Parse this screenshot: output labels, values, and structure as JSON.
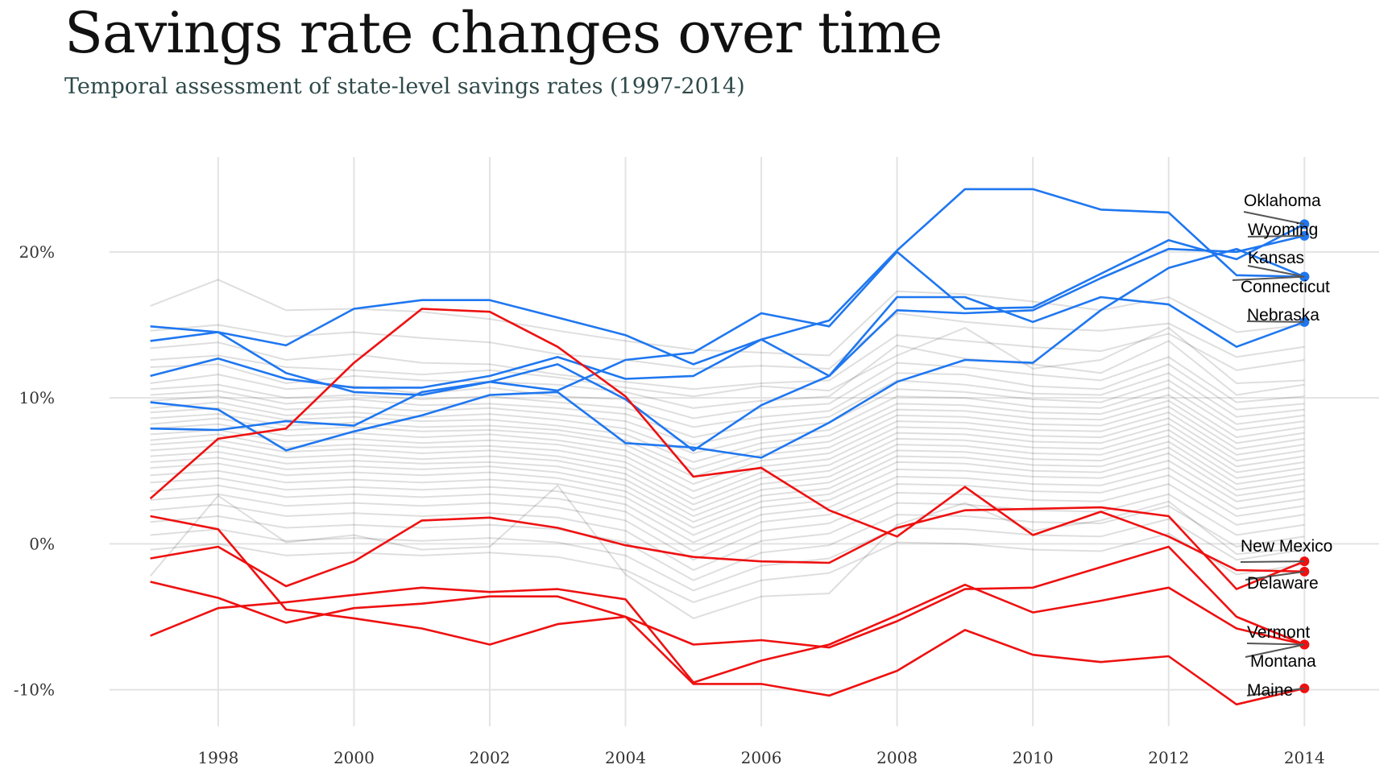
{
  "title": "Savings rate changes over time",
  "subtitle": "Temporal assessment of state-level savings rates (1997-2014)",
  "chart_data": {
    "type": "line",
    "title": "Savings rate changes over time",
    "subtitle": "Temporal assessment of state-level savings rates (1997-2014)",
    "xlabel": "",
    "ylabel": "",
    "x": [
      1997,
      1998,
      1999,
      2000,
      2001,
      2002,
      2003,
      2004,
      2005,
      2006,
      2007,
      2008,
      2009,
      2010,
      2011,
      2012,
      2013,
      2014
    ],
    "xlim": [
      1996.4,
      2015.1
    ],
    "ylim": [
      -12.5,
      26.5
    ],
    "x_ticks": [
      1998,
      2000,
      2002,
      2004,
      2006,
      2008,
      2010,
      2012,
      2014
    ],
    "x_tick_labels": [
      "1998",
      "2000",
      "2002",
      "2004",
      "2006",
      "2008",
      "2010",
      "2012",
      "2014"
    ],
    "y_ticks": [
      -10,
      0,
      10,
      20
    ],
    "y_tick_labels": [
      "-10%",
      "0%",
      "10%",
      "20%"
    ],
    "grid": true,
    "legend": "none",
    "colors": {
      "high": "#1f77f0",
      "low": "#ee1111",
      "other": "#b8b8b8"
    },
    "series": [
      {
        "name": "Oklahoma",
        "group": "high",
        "values": [
          7.9,
          7.8,
          8.4,
          8.1,
          10.4,
          11.1,
          10.5,
          12.6,
          13.1,
          15.8,
          14.9,
          20.0,
          16.1,
          16.2,
          18.5,
          20.8,
          19.5,
          21.9
        ]
      },
      {
        "name": "Wyoming",
        "group": "high",
        "values": [
          13.9,
          14.5,
          11.7,
          10.4,
          10.2,
          11.1,
          12.3,
          9.9,
          6.4,
          9.5,
          11.5,
          16.0,
          15.8,
          16.0,
          18.2,
          20.2,
          20.0,
          21.1
        ]
      },
      {
        "name": "Kansas",
        "group": "high",
        "values": [
          9.7,
          9.2,
          6.4,
          7.7,
          8.8,
          10.2,
          10.4,
          6.9,
          6.6,
          5.9,
          8.3,
          11.1,
          12.6,
          12.4,
          16.0,
          18.9,
          20.2,
          18.3
        ]
      },
      {
        "name": "Connecticut",
        "group": "high",
        "values": [
          14.9,
          14.5,
          13.6,
          16.1,
          16.7,
          16.7,
          15.5,
          14.3,
          12.3,
          14.0,
          15.3,
          20.1,
          24.3,
          24.3,
          22.9,
          22.7,
          18.4,
          18.3
        ]
      },
      {
        "name": "Nebraska",
        "group": "high",
        "values": [
          11.5,
          12.7,
          11.3,
          10.7,
          10.7,
          11.5,
          12.8,
          11.3,
          11.5,
          14.0,
          11.5,
          16.9,
          16.9,
          15.2,
          16.9,
          16.4,
          13.5,
          15.2
        ]
      },
      {
        "name": "New Mexico",
        "group": "low",
        "values": [
          -1.0,
          -0.2,
          -2.9,
          -1.2,
          1.6,
          1.8,
          1.1,
          -0.1,
          -0.9,
          -1.2,
          -1.3,
          1.1,
          2.3,
          2.4,
          2.5,
          1.9,
          -3.1,
          -1.2
        ]
      },
      {
        "name": "Delaware",
        "group": "low",
        "values": [
          3.1,
          7.2,
          7.9,
          12.4,
          16.1,
          15.9,
          13.5,
          10.1,
          4.6,
          5.2,
          2.3,
          0.5,
          3.9,
          0.6,
          2.2,
          0.5,
          -1.8,
          -1.9
        ]
      },
      {
        "name": "Vermont",
        "group": "low",
        "values": [
          -6.3,
          -4.4,
          -4.0,
          -3.5,
          -3.0,
          -3.3,
          -3.1,
          -3.8,
          -9.5,
          -8.0,
          -6.9,
          -4.9,
          -2.8,
          -4.7,
          -3.9,
          -3.0,
          -5.8,
          -6.9
        ]
      },
      {
        "name": "Montana",
        "group": "low",
        "values": [
          1.9,
          1.0,
          -4.5,
          -5.1,
          -5.8,
          -6.9,
          -5.5,
          -5.0,
          -6.9,
          -6.6,
          -7.1,
          -5.3,
          -3.1,
          -3.0,
          -1.6,
          -0.2,
          -5.0,
          -6.9
        ]
      },
      {
        "name": "Maine",
        "group": "low",
        "values": [
          -2.6,
          -3.7,
          -5.4,
          -4.4,
          -4.1,
          -3.6,
          -3.6,
          -5.0,
          -9.6,
          -9.6,
          -10.4,
          -8.7,
          -5.9,
          -7.6,
          -8.1,
          -7.7,
          -11.0,
          -9.9
        ]
      },
      {
        "group": "other",
        "values": [
          16.3,
          18.1,
          16.0,
          16.1,
          15.9,
          15.4,
          14.6,
          13.9,
          13.3,
          13.1,
          12.9,
          17.3,
          17.1,
          16.6,
          16.0,
          16.9,
          14.5,
          15.0
        ]
      },
      {
        "group": "other",
        "values": [
          14.6,
          15.0,
          14.2,
          14.5,
          14.1,
          13.8,
          13.0,
          12.6,
          12.0,
          12.2,
          12.0,
          15.8,
          15.2,
          14.8,
          14.6,
          15.1,
          12.8,
          13.5
        ]
      },
      {
        "group": "other",
        "values": [
          13.4,
          13.8,
          12.6,
          13.0,
          12.4,
          12.3,
          11.6,
          11.1,
          10.6,
          11.0,
          11.2,
          14.3,
          13.9,
          13.5,
          13.2,
          14.4,
          11.9,
          12.6
        ]
      },
      {
        "group": "other",
        "values": [
          12.6,
          12.9,
          12.1,
          11.9,
          11.6,
          11.9,
          11.4,
          10.7,
          10.1,
          10.8,
          10.5,
          12.9,
          14.8,
          12.0,
          12.6,
          14.8,
          11.0,
          11.2
        ]
      },
      {
        "group": "other",
        "values": [
          12.1,
          12.3,
          11.0,
          11.5,
          11.2,
          11.1,
          10.9,
          10.4,
          9.3,
          9.8,
          10.1,
          13.6,
          12.7,
          12.3,
          11.7,
          13.9,
          10.2,
          10.9
        ]
      },
      {
        "group": "other",
        "values": [
          11.0,
          11.6,
          10.6,
          10.8,
          10.3,
          10.7,
          10.1,
          9.9,
          8.6,
          9.3,
          9.6,
          12.4,
          12.1,
          11.6,
          11.2,
          12.8,
          9.7,
          10.1
        ]
      },
      {
        "group": "other",
        "values": [
          10.6,
          10.9,
          10.0,
          10.2,
          9.9,
          10.1,
          9.7,
          9.3,
          8.0,
          8.7,
          9.1,
          11.7,
          11.6,
          10.8,
          10.6,
          12.3,
          9.2,
          9.6
        ]
      },
      {
        "group": "other",
        "values": [
          10.2,
          10.5,
          9.6,
          9.9,
          9.5,
          9.6,
          9.3,
          8.9,
          7.3,
          8.2,
          8.7,
          11.2,
          10.9,
          10.3,
          10.2,
          11.7,
          8.7,
          9.2
        ]
      },
      {
        "group": "other",
        "values": [
          9.8,
          10.1,
          9.2,
          9.4,
          9.1,
          9.3,
          8.9,
          8.4,
          6.8,
          7.8,
          8.3,
          10.6,
          10.4,
          9.9,
          9.7,
          11.2,
          8.2,
          8.8
        ]
      },
      {
        "group": "other",
        "values": [
          9.3,
          9.7,
          8.8,
          9.0,
          8.7,
          8.9,
          8.5,
          7.9,
          6.2,
          7.3,
          7.8,
          10.1,
          10.0,
          9.4,
          9.3,
          10.7,
          7.8,
          8.4
        ]
      },
      {
        "group": "other",
        "values": [
          9.0,
          9.3,
          8.5,
          8.7,
          8.4,
          8.5,
          8.1,
          7.5,
          5.6,
          6.9,
          7.4,
          9.6,
          9.5,
          9.0,
          8.9,
          10.2,
          7.3,
          8.0
        ]
      },
      {
        "group": "other",
        "values": [
          8.6,
          8.9,
          8.1,
          8.3,
          8.0,
          8.1,
          7.8,
          7.1,
          5.1,
          6.5,
          7.0,
          9.2,
          9.1,
          8.6,
          8.5,
          9.8,
          6.9,
          7.6
        ]
      },
      {
        "group": "other",
        "values": [
          8.2,
          8.6,
          7.8,
          8.0,
          7.7,
          7.8,
          7.5,
          6.8,
          4.6,
          6.1,
          6.6,
          8.8,
          8.7,
          8.2,
          8.1,
          9.4,
          6.5,
          7.2
        ]
      },
      {
        "group": "other",
        "values": [
          7.9,
          8.2,
          7.4,
          7.6,
          7.3,
          7.5,
          7.1,
          6.4,
          4.1,
          5.7,
          6.2,
          8.4,
          8.3,
          7.8,
          7.7,
          9.0,
          6.1,
          6.8
        ]
      },
      {
        "group": "other",
        "values": [
          7.5,
          7.8,
          7.0,
          7.2,
          6.9,
          7.1,
          6.8,
          6.0,
          3.6,
          5.3,
          5.8,
          8.0,
          7.9,
          7.4,
          7.3,
          8.6,
          5.7,
          6.4
        ]
      },
      {
        "group": "other",
        "values": [
          7.1,
          7.5,
          6.6,
          6.8,
          6.6,
          6.7,
          6.4,
          5.6,
          3.1,
          4.9,
          5.4,
          7.6,
          7.5,
          7.0,
          6.9,
          8.2,
          5.3,
          6.0
        ]
      },
      {
        "group": "other",
        "values": [
          6.8,
          7.1,
          6.3,
          6.5,
          6.2,
          6.4,
          6.0,
          5.2,
          2.7,
          4.5,
          5.0,
          7.2,
          7.1,
          6.6,
          6.5,
          7.8,
          4.9,
          5.6
        ]
      },
      {
        "group": "other",
        "values": [
          6.4,
          6.7,
          5.9,
          6.1,
          5.8,
          6.0,
          5.7,
          4.8,
          2.3,
          4.1,
          4.6,
          6.8,
          6.7,
          6.2,
          6.1,
          7.4,
          4.5,
          5.2
        ]
      },
      {
        "group": "other",
        "values": [
          6.0,
          6.3,
          5.5,
          5.7,
          5.5,
          5.6,
          5.3,
          4.4,
          1.9,
          3.7,
          4.2,
          6.4,
          6.3,
          5.8,
          5.7,
          7.0,
          4.1,
          4.8
        ]
      },
      {
        "group": "other",
        "values": [
          5.6,
          5.9,
          5.1,
          5.3,
          5.1,
          5.3,
          4.9,
          4.0,
          1.5,
          3.3,
          3.8,
          6.0,
          5.9,
          5.4,
          5.3,
          6.6,
          3.7,
          4.4
        ]
      },
      {
        "group": "other",
        "values": [
          5.2,
          5.5,
          4.7,
          4.9,
          4.7,
          4.9,
          4.5,
          3.6,
          1.1,
          2.9,
          3.4,
          5.6,
          5.5,
          5.0,
          4.9,
          6.2,
          3.3,
          4.0
        ]
      },
      {
        "group": "other",
        "values": [
          4.7,
          5.0,
          4.2,
          4.4,
          4.2,
          4.4,
          4.1,
          3.2,
          0.6,
          2.5,
          3.0,
          5.1,
          5.0,
          4.6,
          4.5,
          5.7,
          2.9,
          3.6
        ]
      },
      {
        "group": "other",
        "values": [
          4.2,
          4.5,
          3.7,
          3.9,
          3.7,
          3.9,
          3.6,
          2.7,
          0.1,
          2.0,
          2.5,
          4.6,
          4.5,
          4.1,
          4.0,
          5.2,
          2.4,
          3.1
        ]
      },
      {
        "group": "other",
        "values": [
          3.6,
          4.0,
          3.2,
          3.4,
          3.2,
          3.4,
          3.1,
          2.2,
          -0.5,
          1.5,
          2.0,
          4.1,
          4.0,
          3.6,
          3.5,
          4.7,
          1.9,
          2.6
        ]
      },
      {
        "group": "other",
        "values": [
          3.0,
          3.4,
          2.6,
          2.8,
          2.6,
          2.8,
          2.5,
          1.6,
          -1.1,
          0.9,
          1.4,
          3.5,
          3.4,
          3.0,
          2.9,
          4.1,
          1.3,
          2.0
        ]
      },
      {
        "group": "other",
        "values": [
          2.3,
          2.7,
          1.9,
          2.1,
          1.9,
          2.1,
          1.8,
          0.9,
          -1.8,
          0.2,
          0.7,
          2.8,
          2.7,
          2.3,
          2.2,
          3.4,
          0.6,
          1.3
        ]
      },
      {
        "group": "other",
        "values": [
          1.5,
          1.9,
          1.1,
          1.3,
          1.1,
          1.3,
          1.0,
          0.1,
          -2.5,
          -0.6,
          -0.1,
          2.0,
          1.9,
          1.5,
          1.4,
          2.6,
          -0.2,
          0.5
        ]
      },
      {
        "group": "other",
        "values": [
          0.6,
          1.0,
          0.2,
          0.4,
          0.2,
          0.4,
          0.1,
          -0.8,
          -3.2,
          -1.5,
          -1.0,
          1.1,
          1.0,
          0.6,
          0.5,
          1.7,
          -1.1,
          -0.4
        ]
      },
      {
        "group": "other",
        "values": [
          -0.4,
          0.0,
          -0.8,
          -0.6,
          -0.8,
          -0.6,
          -0.9,
          -1.8,
          -4.0,
          -2.5,
          -2.0,
          0.1,
          0.0,
          -0.4,
          -0.5,
          0.7,
          -2.1,
          -1.4
        ]
      },
      {
        "group": "other",
        "values": [
          -2.2,
          3.3,
          0.1,
          0.6,
          -0.4,
          -0.2,
          4.0,
          -2.1,
          -5.1,
          -3.6,
          -3.4,
          1.3,
          2.8,
          0.9,
          1.6,
          2.9,
          -0.7,
          -0.3
        ]
      }
    ]
  }
}
